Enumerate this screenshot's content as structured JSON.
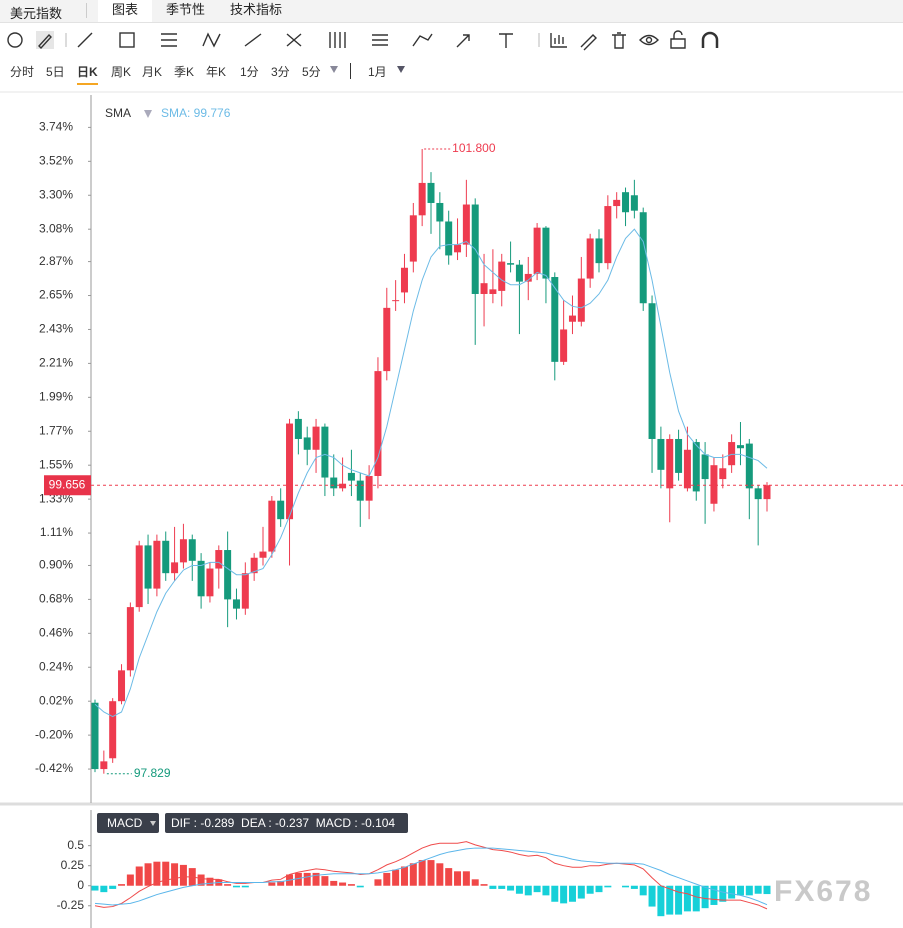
{
  "header": {
    "title": "美元指数",
    "tabs": [
      "图表",
      "季节性",
      "技术指标"
    ]
  },
  "periods": [
    "分时",
    "5日",
    "日K",
    "周K",
    "月K",
    "季K",
    "年K",
    "1分",
    "3分",
    "5分"
  ],
  "range": "1月",
  "watermark": "FX678",
  "chart_data": [
    {
      "type": "candlestick",
      "indicator": "SMA",
      "indicator_value": "SMA: 99.776",
      "high_label": "101.800",
      "low_label": "97.829",
      "last_label": "99.656",
      "up_color": "#ee3b4f",
      "down_color": "#159a7c",
      "sma_color": "#6cbbe6",
      "ylim": [
        -0.64,
        3.95
      ],
      "yticks": [
        {
          "value": 3.74,
          "label": "3.74%"
        },
        {
          "value": 3.52,
          "label": "3.52%"
        },
        {
          "value": 3.3,
          "label": "3.30%"
        },
        {
          "value": 3.08,
          "label": "3.08%"
        },
        {
          "value": 2.87,
          "label": "2.87%"
        },
        {
          "value": 2.65,
          "label": "2.65%"
        },
        {
          "value": 2.43,
          "label": "2.43%"
        },
        {
          "value": 2.21,
          "label": "2.21%"
        },
        {
          "value": 1.99,
          "label": "1.99%"
        },
        {
          "value": 1.77,
          "label": "1.77%"
        },
        {
          "value": 1.55,
          "label": "1.55%"
        },
        {
          "value": 1.33,
          "label": "1.33%"
        },
        {
          "value": 1.11,
          "label": "1.11%"
        },
        {
          "value": 0.9,
          "label": "0.90%"
        },
        {
          "value": 0.68,
          "label": "0.68%"
        },
        {
          "value": 0.46,
          "label": "0.46%"
        },
        {
          "value": 0.24,
          "label": "0.24%"
        },
        {
          "value": 0.02,
          "label": "0.02%"
        },
        {
          "value": -0.2,
          "label": "-0.20%"
        },
        {
          "value": -0.42,
          "label": "-0.42%"
        }
      ],
      "open": [
        0.01,
        -0.42,
        -0.35,
        0.02,
        0.22,
        0.63,
        1.03,
        0.75,
        1.06,
        0.85,
        0.92,
        1.07,
        0.93,
        0.7,
        0.88,
        1.0,
        0.68,
        0.62,
        0.85,
        0.95,
        0.99,
        1.32,
        1.2,
        1.85,
        1.73,
        1.65,
        1.8,
        1.47,
        1.4,
        1.5,
        1.45,
        1.32,
        1.48,
        2.16,
        2.62,
        2.67,
        2.87,
        3.17,
        3.38,
        3.25,
        3.13,
        2.93,
        2.98,
        3.24,
        2.66,
        2.66,
        2.68,
        2.86,
        2.85,
        2.74,
        2.79,
        3.09,
        2.77,
        2.22,
        2.48,
        2.48,
        2.76,
        3.02,
        2.86,
        3.23,
        3.32,
        3.3,
        3.19,
        2.6,
        1.72,
        1.4,
        1.72,
        1.4,
        1.7,
        1.62,
        1.3,
        1.46,
        1.55,
        1.68,
        1.69,
        1.4,
        1.33
      ],
      "high": [
        0.03,
        -0.3,
        0.04,
        0.26,
        0.66,
        1.06,
        1.1,
        1.1,
        1.12,
        1.15,
        1.17,
        1.1,
        0.98,
        0.92,
        1.03,
        1.12,
        0.75,
        0.92,
        0.98,
        1.15,
        1.35,
        1.4,
        1.85,
        1.9,
        1.8,
        1.85,
        1.82,
        1.62,
        1.6,
        1.65,
        1.5,
        1.55,
        2.25,
        2.7,
        2.75,
        2.92,
        3.25,
        3.6,
        3.45,
        3.32,
        3.2,
        3.15,
        3.4,
        3.28,
        2.92,
        2.95,
        2.92,
        3.0,
        2.88,
        2.9,
        3.12,
        3.1,
        2.8,
        2.62,
        2.65,
        2.9,
        3.05,
        3.08,
        3.3,
        3.32,
        3.35,
        3.4,
        3.22,
        2.65,
        1.8,
        1.75,
        1.78,
        1.8,
        1.72,
        1.7,
        1.6,
        1.62,
        1.75,
        1.83,
        1.72,
        1.42,
        1.44
      ],
      "low": [
        -0.44,
        -0.45,
        -0.38,
        0.0,
        0.18,
        0.6,
        0.65,
        0.7,
        0.8,
        0.8,
        0.88,
        0.8,
        0.62,
        0.66,
        0.75,
        0.5,
        0.55,
        0.58,
        0.8,
        0.9,
        0.95,
        1.15,
        0.9,
        1.62,
        1.55,
        1.5,
        1.35,
        1.35,
        1.38,
        1.35,
        1.15,
        1.2,
        1.4,
        2.1,
        2.55,
        2.6,
        2.8,
        3.1,
        3.05,
        2.95,
        2.85,
        2.88,
        2.9,
        2.33,
        2.45,
        2.6,
        2.58,
        2.8,
        2.4,
        2.62,
        2.75,
        2.6,
        2.1,
        2.2,
        2.4,
        2.45,
        2.7,
        2.8,
        2.82,
        3.15,
        3.1,
        3.15,
        2.55,
        1.5,
        1.4,
        1.18,
        1.45,
        1.38,
        1.32,
        1.17,
        1.25,
        1.4,
        1.5,
        1.55,
        1.2,
        1.03,
        1.25
      ],
      "close": [
        -0.42,
        -0.37,
        0.02,
        0.22,
        0.63,
        1.03,
        0.75,
        1.06,
        0.85,
        0.92,
        1.07,
        0.93,
        0.7,
        0.88,
        1.0,
        0.68,
        0.62,
        0.85,
        0.95,
        0.99,
        1.32,
        1.2,
        1.82,
        1.72,
        1.65,
        1.8,
        1.47,
        1.4,
        1.43,
        1.45,
        1.32,
        1.48,
        2.16,
        2.57,
        2.62,
        2.83,
        3.17,
        3.38,
        3.25,
        3.13,
        2.91,
        2.98,
        3.24,
        2.66,
        2.73,
        2.69,
        2.87,
        2.85,
        2.74,
        2.79,
        3.09,
        2.76,
        2.22,
        2.43,
        2.52,
        2.76,
        3.02,
        2.86,
        3.23,
        3.27,
        3.19,
        3.2,
        2.6,
        1.72,
        1.52,
        1.72,
        1.5,
        1.65,
        1.38,
        1.46,
        1.55,
        1.53,
        1.7,
        1.66,
        1.4,
        1.33,
        1.42
      ],
      "sma": [
        0.0,
        -0.05,
        -0.08,
        -0.05,
        0.1,
        0.3,
        0.45,
        0.6,
        0.72,
        0.8,
        0.87,
        0.9,
        0.9,
        0.92,
        0.92,
        0.88,
        0.84,
        0.84,
        0.86,
        0.88,
        0.97,
        1.08,
        1.22,
        1.37,
        1.5,
        1.6,
        1.62,
        1.6,
        1.55,
        1.52,
        1.5,
        1.48,
        1.6,
        1.8,
        2.05,
        2.3,
        2.55,
        2.75,
        2.9,
        2.97,
        2.98,
        2.98,
        3.0,
        2.95,
        2.85,
        2.8,
        2.75,
        2.72,
        2.72,
        2.75,
        2.8,
        2.78,
        2.7,
        2.62,
        2.58,
        2.57,
        2.6,
        2.66,
        2.75,
        2.9,
        3.02,
        3.08,
        3.0,
        2.75,
        2.45,
        2.15,
        1.9,
        1.75,
        1.68,
        1.62,
        1.6,
        1.6,
        1.62,
        1.62,
        1.6,
        1.58,
        1.53
      ]
    },
    {
      "type": "macd",
      "indicator": "MACD",
      "legend": "DIF : -0.289  DEA : -0.237  MACD : -0.104",
      "dif_color": "#ef4b4b",
      "dea_color": "#5bb6ea",
      "up_color": "#f04747",
      "down_color": "#16d0d8",
      "ylim": [
        -0.49,
        0.92
      ],
      "yticks": [
        0.5,
        0.25,
        0,
        -0.25
      ],
      "dif": [
        -0.25,
        -0.27,
        -0.26,
        -0.22,
        -0.15,
        -0.07,
        -0.01,
        0.04,
        0.07,
        0.09,
        0.11,
        0.11,
        0.09,
        0.08,
        0.08,
        0.05,
        0.03,
        0.03,
        0.04,
        0.04,
        0.07,
        0.08,
        0.14,
        0.17,
        0.19,
        0.21,
        0.2,
        0.18,
        0.17,
        0.16,
        0.14,
        0.15,
        0.2,
        0.26,
        0.3,
        0.35,
        0.41,
        0.47,
        0.51,
        0.53,
        0.53,
        0.53,
        0.55,
        0.51,
        0.48,
        0.45,
        0.44,
        0.42,
        0.39,
        0.37,
        0.38,
        0.35,
        0.28,
        0.25,
        0.23,
        0.23,
        0.25,
        0.25,
        0.27,
        0.28,
        0.27,
        0.26,
        0.21,
        0.1,
        0.0,
        -0.04,
        -0.08,
        -0.1,
        -0.14,
        -0.16,
        -0.17,
        -0.18,
        -0.18,
        -0.18,
        -0.21,
        -0.24,
        -0.289
      ],
      "dea": [
        -0.22,
        -0.23,
        -0.24,
        -0.23,
        -0.22,
        -0.19,
        -0.15,
        -0.11,
        -0.08,
        -0.05,
        -0.02,
        0.0,
        0.02,
        0.03,
        0.04,
        0.04,
        0.04,
        0.04,
        0.04,
        0.04,
        0.05,
        0.05,
        0.07,
        0.09,
        0.11,
        0.13,
        0.14,
        0.15,
        0.15,
        0.15,
        0.15,
        0.15,
        0.16,
        0.18,
        0.2,
        0.23,
        0.27,
        0.31,
        0.35,
        0.39,
        0.42,
        0.44,
        0.46,
        0.47,
        0.47,
        0.47,
        0.46,
        0.45,
        0.44,
        0.43,
        0.42,
        0.41,
        0.38,
        0.36,
        0.33,
        0.31,
        0.3,
        0.29,
        0.28,
        0.28,
        0.28,
        0.28,
        0.27,
        0.23,
        0.19,
        0.14,
        0.1,
        0.06,
        0.02,
        -0.02,
        -0.05,
        -0.08,
        -0.1,
        -0.12,
        -0.15,
        -0.19,
        -0.237
      ],
      "macd": [
        -0.06,
        -0.08,
        -0.04,
        0.02,
        0.14,
        0.24,
        0.28,
        0.3,
        0.3,
        0.28,
        0.26,
        0.22,
        0.14,
        0.1,
        0.08,
        0.02,
        -0.02,
        -0.02,
        0,
        0,
        0.04,
        0.06,
        0.14,
        0.16,
        0.16,
        0.16,
        0.12,
        0.06,
        0.04,
        0.02,
        -0.02,
        0,
        0.08,
        0.16,
        0.2,
        0.24,
        0.28,
        0.32,
        0.32,
        0.28,
        0.22,
        0.18,
        0.18,
        0.08,
        0.02,
        -0.04,
        -0.04,
        -0.06,
        -0.1,
        -0.12,
        -0.08,
        -0.12,
        -0.2,
        -0.22,
        -0.2,
        -0.16,
        -0.1,
        -0.08,
        -0.02,
        0,
        -0.02,
        -0.04,
        -0.12,
        -0.26,
        -0.38,
        -0.36,
        -0.36,
        -0.32,
        -0.32,
        -0.28,
        -0.24,
        -0.2,
        -0.16,
        -0.12,
        -0.12,
        -0.1,
        -0.104
      ]
    }
  ]
}
